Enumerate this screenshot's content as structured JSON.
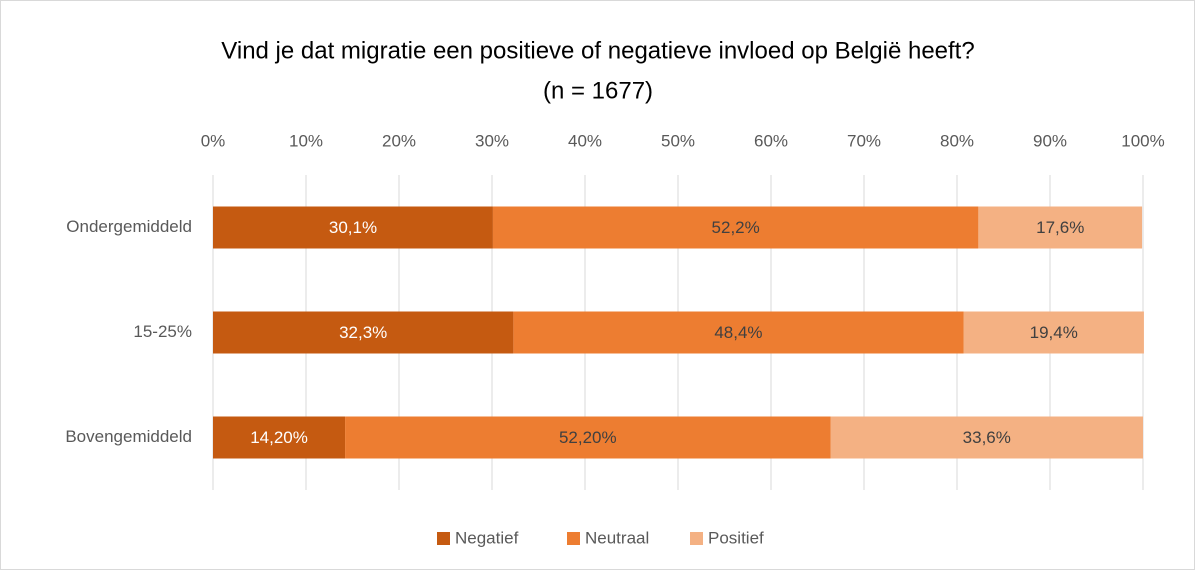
{
  "chart_data": {
    "type": "stacked_bar_horizontal",
    "title": "Vind je dat migratie een positieve of negatieve invloed op België heeft?",
    "subtitle": "(n = 1677)",
    "categories": [
      "Ondergemiddeld",
      "15-25%",
      "Bovengemiddeld"
    ],
    "series": [
      {
        "name": "Negatief",
        "color": "#c55a11",
        "values": [
          30.1,
          32.3,
          14.2
        ],
        "value_labels": [
          "30,1%",
          "32,3%",
          "14,20%"
        ]
      },
      {
        "name": "Neutraal",
        "color": "#ed7d31",
        "values": [
          52.2,
          48.4,
          52.2
        ],
        "value_labels": [
          "52,2%",
          "48,4%",
          "52,20%"
        ]
      },
      {
        "name": "Positief",
        "color": "#f4b183",
        "values": [
          17.6,
          19.4,
          33.6
        ],
        "value_labels": [
          "17,6%",
          "19,4%",
          "33,6%"
        ]
      }
    ],
    "xlim": [
      0,
      100
    ],
    "xticks": [
      {
        "value": 0,
        "label": "0%"
      },
      {
        "value": 10,
        "label": "10%"
      },
      {
        "value": 20,
        "label": "20%"
      },
      {
        "value": 30,
        "label": "30%"
      },
      {
        "value": 40,
        "label": "40%"
      },
      {
        "value": 50,
        "label": "50%"
      },
      {
        "value": 60,
        "label": "60%"
      },
      {
        "value": 70,
        "label": "70%"
      },
      {
        "value": 80,
        "label": "80%"
      },
      {
        "value": 90,
        "label": "90%"
      },
      {
        "value": 100,
        "label": "100%"
      }
    ],
    "grid": true,
    "legend": "bottom"
  }
}
